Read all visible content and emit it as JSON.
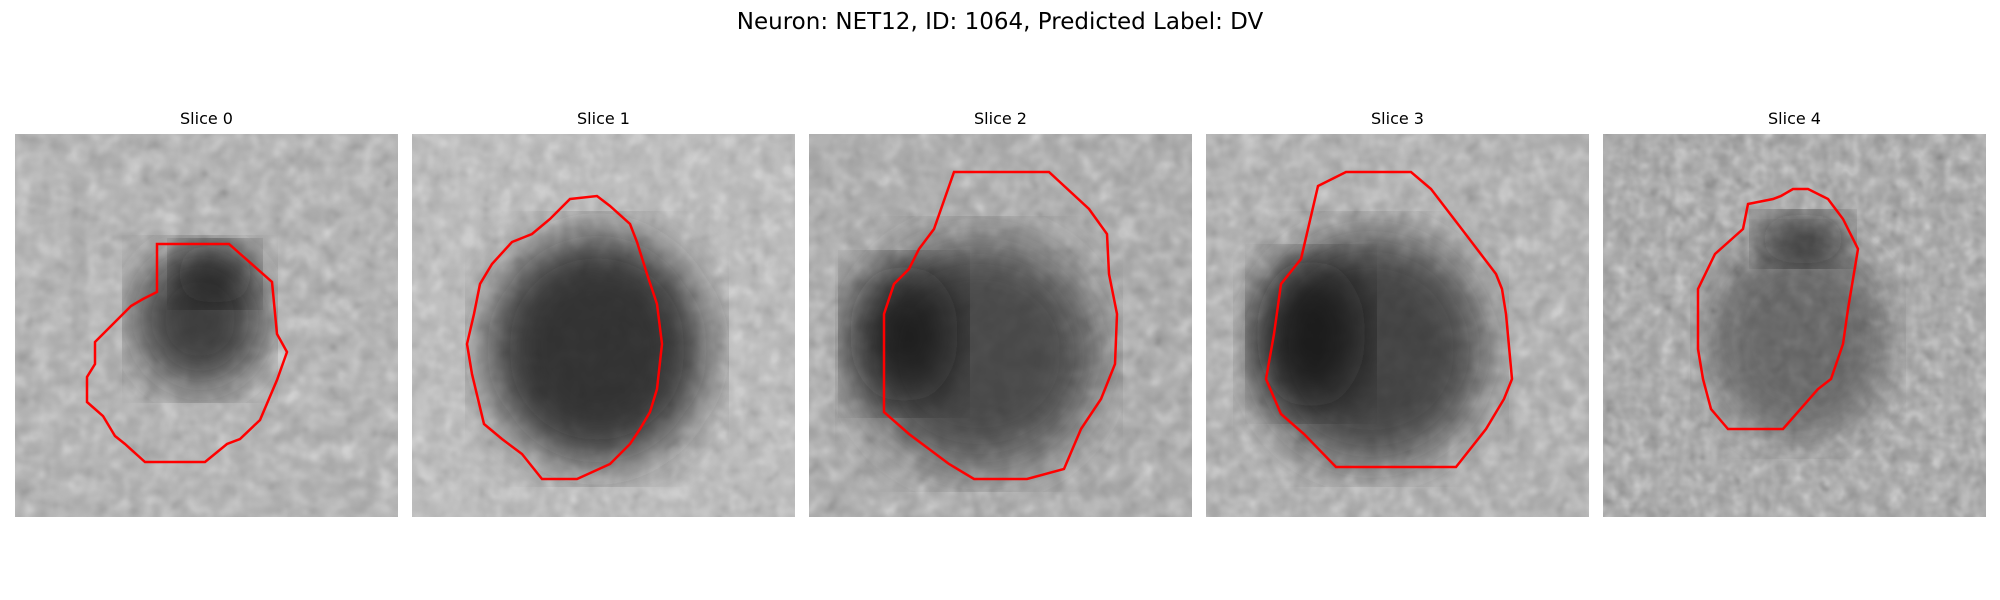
{
  "figure": {
    "title": "Neuron: NET12, ID: 1064, Predicted Label: DV"
  },
  "panels": [
    {
      "title": "Slice 0"
    },
    {
      "title": "Slice 1"
    },
    {
      "title": "Slice 2"
    },
    {
      "title": "Slice 3"
    },
    {
      "title": "Slice 4"
    }
  ],
  "colors": {
    "contour": "#ff0000",
    "background": "#ffffff"
  },
  "image_style": "grayscale pixelated micrograph with red cell contour"
}
